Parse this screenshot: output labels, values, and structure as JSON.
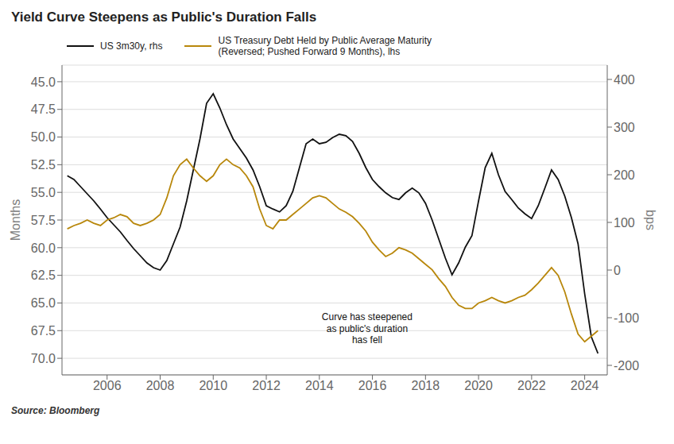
{
  "chart_data": {
    "type": "line",
    "title": "Yield Curve Steepens as Public's Duration Falls",
    "x": [
      2004.5,
      2004.75,
      2005.0,
      2005.25,
      2005.5,
      2005.75,
      2006.0,
      2006.25,
      2006.5,
      2006.75,
      2007.0,
      2007.25,
      2007.5,
      2007.75,
      2008.0,
      2008.25,
      2008.5,
      2008.75,
      2009.0,
      2009.25,
      2009.5,
      2009.75,
      2010.0,
      2010.25,
      2010.5,
      2010.75,
      2011.0,
      2011.25,
      2011.5,
      2011.75,
      2012.0,
      2012.25,
      2012.5,
      2012.75,
      2013.0,
      2013.25,
      2013.5,
      2013.75,
      2014.0,
      2014.25,
      2014.5,
      2014.75,
      2015.0,
      2015.25,
      2015.5,
      2015.75,
      2016.0,
      2016.25,
      2016.5,
      2016.75,
      2017.0,
      2017.25,
      2017.5,
      2017.75,
      2018.0,
      2018.25,
      2018.5,
      2018.75,
      2019.0,
      2019.25,
      2019.5,
      2019.75,
      2020.0,
      2020.25,
      2020.5,
      2020.75,
      2021.0,
      2021.25,
      2021.5,
      2021.75,
      2022.0,
      2022.25,
      2022.5,
      2022.75,
      2023.0,
      2023.25,
      2023.5,
      2023.75,
      2024.0,
      2024.25,
      2024.5
    ],
    "series": [
      {
        "name": "US 3m30y, rhs",
        "color": "#111111",
        "axis": "y2",
        "values": [
          198,
          190,
          175,
          160,
          145,
          128,
          110,
          95,
          80,
          62,
          45,
          30,
          15,
          5,
          0,
          20,
          55,
          90,
          145,
          210,
          275,
          350,
          370,
          340,
          305,
          275,
          255,
          235,
          210,
          175,
          135,
          128,
          122,
          135,
          165,
          215,
          265,
          275,
          265,
          268,
          278,
          285,
          282,
          270,
          245,
          215,
          190,
          175,
          162,
          152,
          148,
          162,
          172,
          162,
          140,
          105,
          65,
          25,
          -10,
          15,
          48,
          72,
          145,
          215,
          245,
          200,
          165,
          148,
          130,
          118,
          108,
          135,
          172,
          210,
          190,
          155,
          110,
          55,
          -50,
          -140,
          -175
        ]
      },
      {
        "name": "US Treasury Debt Held by Public Average Maturity\n(Reversed; Pushed Forward 9 Months), lhs",
        "color": "#b8870b",
        "values": [
          58.3,
          58.0,
          57.8,
          57.5,
          57.8,
          58.0,
          57.5,
          57.3,
          57.0,
          57.2,
          57.8,
          58.0,
          57.8,
          57.5,
          57.0,
          55.5,
          53.5,
          52.5,
          52.0,
          52.8,
          53.5,
          54.0,
          53.5,
          52.5,
          52.0,
          52.5,
          52.8,
          53.5,
          54.5,
          56.5,
          58.0,
          58.3,
          57.5,
          57.5,
          57.0,
          56.5,
          56.0,
          55.5,
          55.3,
          55.5,
          56.0,
          56.5,
          56.8,
          57.2,
          57.8,
          58.5,
          59.5,
          60.2,
          60.8,
          60.5,
          60.0,
          60.2,
          60.5,
          61.0,
          61.5,
          62.0,
          62.8,
          63.5,
          64.5,
          65.2,
          65.5,
          65.5,
          65.0,
          64.8,
          64.5,
          64.8,
          65.0,
          64.8,
          64.5,
          64.3,
          63.8,
          63.2,
          62.5,
          61.8,
          62.5,
          64.0,
          66.0,
          67.8,
          68.5,
          68.0,
          67.5
        ]
      }
    ],
    "xlim": [
      2004.3,
      2024.85
    ],
    "xticks": [
      2006,
      2008,
      2010,
      2012,
      2014,
      2016,
      2018,
      2020,
      2022,
      2024
    ],
    "ylim": [
      71.5,
      43.5
    ],
    "yticks": [
      {
        "value": 45,
        "label": "45.0"
      },
      47.5,
      {
        "value": 50,
        "label": "50.0"
      },
      52.5,
      {
        "value": 55,
        "label": "55.0"
      },
      57.5,
      {
        "value": 60,
        "label": "60.0"
      },
      62.5,
      {
        "value": 65,
        "label": "65.0"
      },
      67.5,
      {
        "value": 70,
        "label": "70.0"
      }
    ],
    "y2lim": [
      -220,
      430
    ],
    "y2ticks": [
      400,
      300,
      200,
      100,
      0,
      -100,
      -200
    ],
    "ylabel": "Months",
    "y2label": "bps",
    "grid": true,
    "legend": "top",
    "annotations": [
      {
        "text": "Curve has steepened\nas public's duration\nhas fell",
        "x": 2015.8,
        "y": 65.8
      }
    ],
    "source": "Source: Bloomberg"
  }
}
